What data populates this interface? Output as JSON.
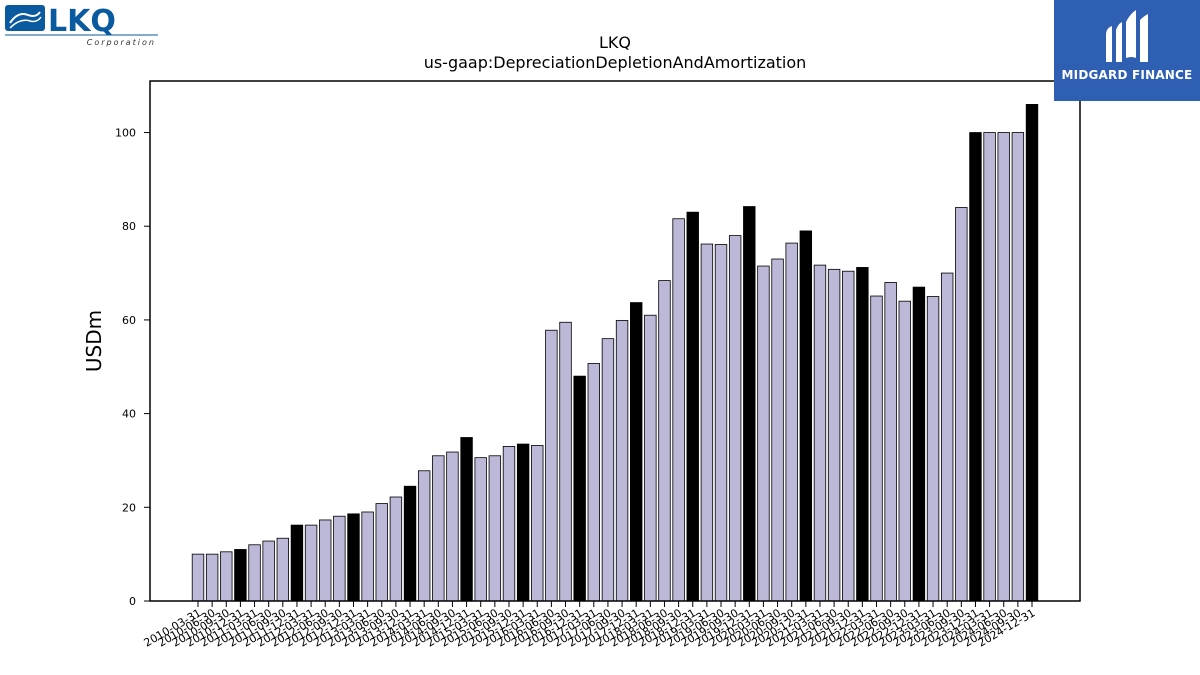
{
  "logos": {
    "left_main": "LKQ",
    "left_sub": "Corporation",
    "right_name": "MIDGARD FINANCE"
  },
  "colors": {
    "bar_default": "#bcb8d8",
    "bar_highlight": "#000000",
    "bar_stroke": "#000000",
    "lkq_blue": "#0a5aa0",
    "midgard_blue": "#2f5fb3"
  },
  "chart_data": {
    "type": "bar",
    "title": "LKQ",
    "subtitle": "us-gaap:DepreciationDepletionAndAmortization",
    "xlabel": "",
    "ylabel": "USDm",
    "ylim": [
      0,
      111
    ],
    "yticks": [
      0,
      20,
      40,
      60,
      80,
      100
    ],
    "grid": false,
    "categories": [
      "2010-03-31",
      "2010-06-30",
      "2010-09-30",
      "2010-12-31",
      "2011-03-31",
      "2011-06-30",
      "2011-09-30",
      "2011-12-31",
      "2012-03-31",
      "2012-06-30",
      "2012-09-30",
      "2012-12-31",
      "2013-03-31",
      "2013-06-30",
      "2013-09-30",
      "2013-12-31",
      "2014-03-31",
      "2014-06-30",
      "2014-09-30",
      "2014-12-31",
      "2015-03-31",
      "2015-06-30",
      "2015-09-30",
      "2015-12-31",
      "2016-03-31",
      "2016-06-30",
      "2016-09-30",
      "2016-12-31",
      "2017-03-31",
      "2017-06-30",
      "2017-09-30",
      "2017-12-31",
      "2018-03-31",
      "2018-06-30",
      "2018-09-30",
      "2018-12-31",
      "2019-03-31",
      "2019-06-30",
      "2019-09-30",
      "2019-12-31",
      "2020-03-31",
      "2020-06-30",
      "2020-09-30",
      "2020-12-31",
      "2021-03-31",
      "2021-06-30",
      "2021-09-30",
      "2021-12-31",
      "2022-03-31",
      "2022-06-30",
      "2022-09-30",
      "2022-12-31",
      "2023-03-31",
      "2023-06-30",
      "2023-09-30",
      "2023-12-31",
      "2024-03-31",
      "2024-06-30",
      "2024-09-30",
      "2024-12-31"
    ],
    "values": [
      10,
      10,
      10.5,
      11,
      12,
      12.8,
      13.4,
      16.2,
      16.2,
      17.3,
      18.1,
      18.6,
      19,
      20.8,
      22.2,
      24.5,
      27.8,
      31,
      31.8,
      34.9,
      30.6,
      31,
      33,
      33.5,
      33.2,
      57.8,
      59.5,
      48,
      50.7,
      56,
      59.9,
      63.7,
      61,
      68.4,
      81.6,
      83,
      76.2,
      76.1,
      78,
      84.2,
      71.5,
      73,
      76.4,
      79,
      71.7,
      70.8,
      70.4,
      71.2,
      65.1,
      68,
      64,
      67,
      65,
      70,
      84,
      100,
      100,
      100,
      100,
      106
    ],
    "highlight_indices": [
      3,
      7,
      11,
      15,
      19,
      23,
      27,
      31,
      35,
      39,
      43,
      47,
      51,
      55,
      59
    ]
  }
}
